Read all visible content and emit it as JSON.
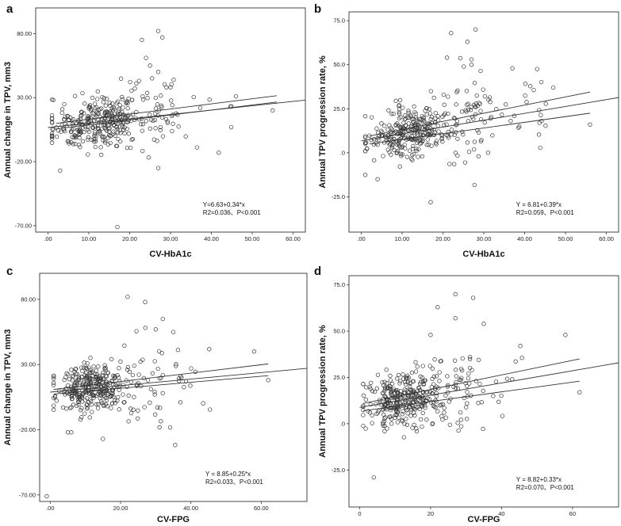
{
  "chart_data": [
    {
      "panel": "a",
      "type": "scatter",
      "xlabel": "CV-HbA1c",
      "ylabel": "Annual change in TPV, mm3",
      "xlim": [
        -3,
        63
      ],
      "ylim": [
        -75,
        100
      ],
      "xticks": [
        0,
        10,
        20,
        30,
        40,
        50,
        60
      ],
      "xtick_labels": [
        ".00",
        "10.00",
        "20.00",
        "30.00",
        "40.00",
        "50.00",
        "60.00"
      ],
      "yticks": [
        80,
        30,
        -20,
        -70
      ],
      "ytick_labels": [
        "80.00",
        "30.00",
        "-20.00",
        "-70.00"
      ],
      "equation": "Y=6.63+0.34*x",
      "r2_text": "R2=0.036、P<0.001",
      "fit": {
        "intercept": 6.63,
        "slope": 0.34,
        "x_range": [
          0,
          63
        ],
        "ci_x_range": [
          2,
          56
        ],
        "ci_left": [
          5.6,
          9.9
        ],
        "ci_right": [
          26.5,
          31.5
        ]
      },
      "seed": 11,
      "n": 360,
      "outliers": [
        [
          17,
          -71
        ],
        [
          27,
          82
        ],
        [
          28,
          77
        ],
        [
          23,
          75
        ],
        [
          3,
          -27
        ],
        [
          27,
          -25
        ],
        [
          24,
          61
        ],
        [
          29,
          38
        ],
        [
          30,
          38
        ],
        [
          25,
          55
        ],
        [
          46,
          31
        ],
        [
          55,
          20
        ]
      ]
    },
    {
      "panel": "b",
      "type": "scatter",
      "xlabel": "CV-HbA1c",
      "ylabel": "Annual TPV progression rate, %",
      "xlim": [
        -3,
        63
      ],
      "ylim": [
        -45,
        80
      ],
      "xticks": [
        0,
        10,
        20,
        30,
        40,
        50,
        60
      ],
      "xtick_labels": [
        ".00",
        "10.00",
        "20.00",
        "30.00",
        "40.00",
        "50.00",
        "60.00"
      ],
      "yticks": [
        75,
        50,
        25,
        0,
        -25
      ],
      "ytick_labels": [
        "75.0",
        "50.0",
        "25.0",
        ".0",
        "-25.0"
      ],
      "equation": "Y = 6.81+0.39*x",
      "r2_text": "R2=0.059、P<0.001",
      "fit": {
        "intercept": 6.81,
        "slope": 0.39,
        "x_range": [
          0,
          63
        ],
        "ci_x_range": [
          2,
          56
        ],
        "ci_left": [
          5.0,
          9.5
        ],
        "ci_right": [
          22.5,
          34.5
        ]
      },
      "seed": 23,
      "n": 380,
      "outliers": [
        [
          28,
          70
        ],
        [
          22,
          68
        ],
        [
          21,
          54
        ],
        [
          27,
          53
        ],
        [
          27,
          50
        ],
        [
          37,
          48
        ],
        [
          17,
          -28
        ],
        [
          4,
          -15
        ],
        [
          56,
          16
        ],
        [
          47,
          37
        ],
        [
          26,
          63
        ]
      ]
    },
    {
      "panel": "c",
      "type": "scatter",
      "xlabel": "CV-FPG",
      "ylabel": "Annual change in TPV, mm3",
      "xlim": [
        -3,
        73
      ],
      "ylim": [
        -75,
        100
      ],
      "xticks": [
        0,
        20,
        40,
        60
      ],
      "xtick_labels": [
        ".00",
        "20.00",
        "40.00",
        "60.00"
      ],
      "yticks": [
        80,
        30,
        -20,
        -70
      ],
      "ytick_labels": [
        "80.00",
        "30.00",
        "-20.00",
        "-70.00"
      ],
      "equation": "Y = 8.85+0.25*x",
      "r2_text": "R2=0.033、P<0.001",
      "fit": {
        "intercept": 8.85,
        "slope": 0.25,
        "x_range": [
          0,
          73
        ],
        "ci_x_range": [
          1,
          62
        ],
        "ci_left": [
          7.4,
          10.9
        ],
        "ci_right": [
          21.5,
          30.5
        ]
      },
      "seed": 37,
      "n": 360,
      "outliers": [
        [
          22,
          82
        ],
        [
          27,
          78
        ],
        [
          32,
          65
        ],
        [
          35,
          55
        ],
        [
          5,
          -22
        ],
        [
          6,
          -22
        ],
        [
          15,
          -27
        ],
        [
          -1,
          -71
        ],
        [
          58,
          40
        ],
        [
          62,
          18
        ],
        [
          30,
          57
        ]
      ]
    },
    {
      "panel": "d",
      "type": "scatter",
      "xlabel": "CV-FPG",
      "ylabel": "Annual TPV progression rate, %",
      "xlim": [
        -3,
        73
      ],
      "ylim": [
        -45,
        80
      ],
      "xticks": [
        0,
        20,
        40,
        60
      ],
      "xtick_labels": [
        "0",
        "20",
        "40",
        "60"
      ],
      "yticks": [
        75,
        50,
        25,
        0,
        -25
      ],
      "ytick_labels": [
        "75.0",
        "50.0",
        "25.0",
        ".0",
        "-25.0"
      ],
      "equation": "Y = 8.82+0.33*x",
      "r2_text": "R2=0.070、P<0.001",
      "fit": {
        "intercept": 8.82,
        "slope": 0.33,
        "x_range": [
          0,
          73
        ],
        "ci_x_range": [
          1,
          62
        ],
        "ci_left": [
          7.0,
          11.0
        ],
        "ci_right": [
          23.0,
          35.0
        ]
      },
      "seed": 53,
      "n": 380,
      "outliers": [
        [
          27,
          70
        ],
        [
          32,
          68
        ],
        [
          22,
          63
        ],
        [
          27,
          57
        ],
        [
          35,
          54
        ],
        [
          4,
          -29
        ],
        [
          62,
          17
        ],
        [
          58,
          48
        ],
        [
          20,
          48
        ],
        [
          43,
          24
        ]
      ]
    }
  ]
}
